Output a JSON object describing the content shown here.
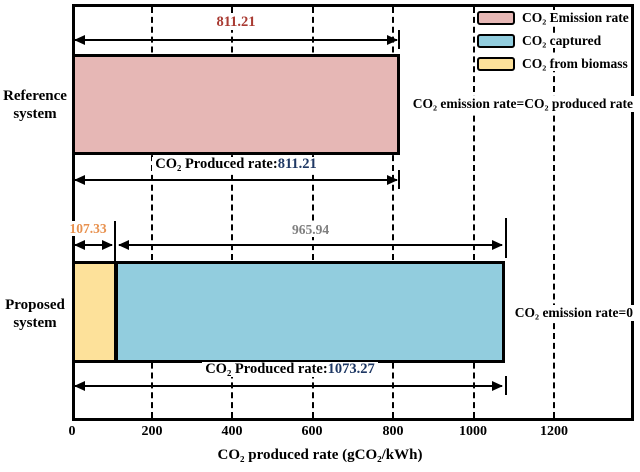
{
  "chart_data": {
    "type": "bar",
    "orientation": "horizontal",
    "xlabel": "CO₂ produced rate (gCO₂/kWh)",
    "xlim": [
      0,
      1390
    ],
    "x_ticks": [
      "0",
      "200",
      "400",
      "600",
      "800",
      "1000",
      "1200"
    ],
    "grid": "dashed-vertical",
    "legend_position": "top-right",
    "categories": [
      "Reference system",
      "Proposed system"
    ],
    "series": [
      {
        "name": "CO₂ Emission rate",
        "color": "#e6b7b5",
        "values": [
          811.21,
          0
        ]
      },
      {
        "name": "CO₂ from biomass",
        "color": "#fde19a",
        "values": [
          0,
          107.33
        ]
      },
      {
        "name": "CO₂ captured",
        "color": "#92cdde",
        "values": [
          0,
          965.94
        ]
      }
    ],
    "totals": {
      "reference_produced": 811.21,
      "proposed_produced": 1073.27
    }
  },
  "labels": {
    "reference_line1": "Reference",
    "reference_line2": "system",
    "proposed_line1": "Proposed",
    "proposed_line2": "system"
  },
  "legend": {
    "items": [
      {
        "label": "CO₂ Emission rate",
        "color": "#e6b7b5"
      },
      {
        "label": "CO₂ captured",
        "color": "#92cdde"
      },
      {
        "label": "CO₂ from biomass",
        "color": "#fde19a"
      }
    ]
  },
  "annotations": {
    "ref_emission_value": "811.21",
    "ref_produced_label": "CO₂ Produced rate:",
    "ref_produced_value": "811.21",
    "ref_note": "CO₂ emission rate=CO₂ produced rate",
    "prop_biomass_value": "107.33",
    "prop_captured_value": "965.94",
    "prop_produced_label": "CO₂ Produced rate:",
    "prop_produced_value": "1073.27",
    "prop_note": "CO₂ emission rate=0"
  },
  "colors": {
    "emission_rate": "#e6b7b5",
    "captured": "#92cdde",
    "biomass": "#fde19a",
    "value_red": "#a93a32",
    "value_navy": "#1f3864",
    "value_orange": "#e8914f",
    "value_gray": "#7f7f7f"
  }
}
